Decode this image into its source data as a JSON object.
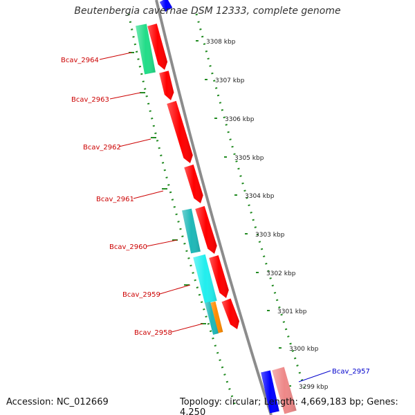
{
  "title": "Beutenbergia cavernae DSM 12333, complete genome",
  "footer": {
    "accession": "Accession: NC_012669",
    "summary": "Topology: circular; Length: 4,669,183 bp; Genes: 4,250"
  },
  "colors": {
    "backbone": "#8c8c8c",
    "cds_forward": "#ff0000",
    "cds_reverse": "#0000ff",
    "ticks": "#228b22",
    "label_red": "#cc0000",
    "label_blue": "#0000cc"
  },
  "kbp_labels": [
    "3308 kbp",
    "3307 kbp",
    "3306 kbp",
    "3305 kbp",
    "3304 kbp",
    "3303 kbp",
    "3302 kbp",
    "3301 kbp",
    "3300 kbp",
    "3299 kbp"
  ],
  "genes": [
    {
      "name": "Bcav_2964",
      "color": "#cc0000"
    },
    {
      "name": "Bcav_2963",
      "color": "#cc0000"
    },
    {
      "name": "Bcav_2962",
      "color": "#cc0000"
    },
    {
      "name": "Bcav_2961",
      "color": "#cc0000"
    },
    {
      "name": "Bcav_2960",
      "color": "#cc0000"
    },
    {
      "name": "Bcav_2959",
      "color": "#cc0000"
    },
    {
      "name": "Bcav_2958",
      "color": "#cc0000"
    },
    {
      "name": "Bcav_2957",
      "color": "#0000cc"
    }
  ]
}
